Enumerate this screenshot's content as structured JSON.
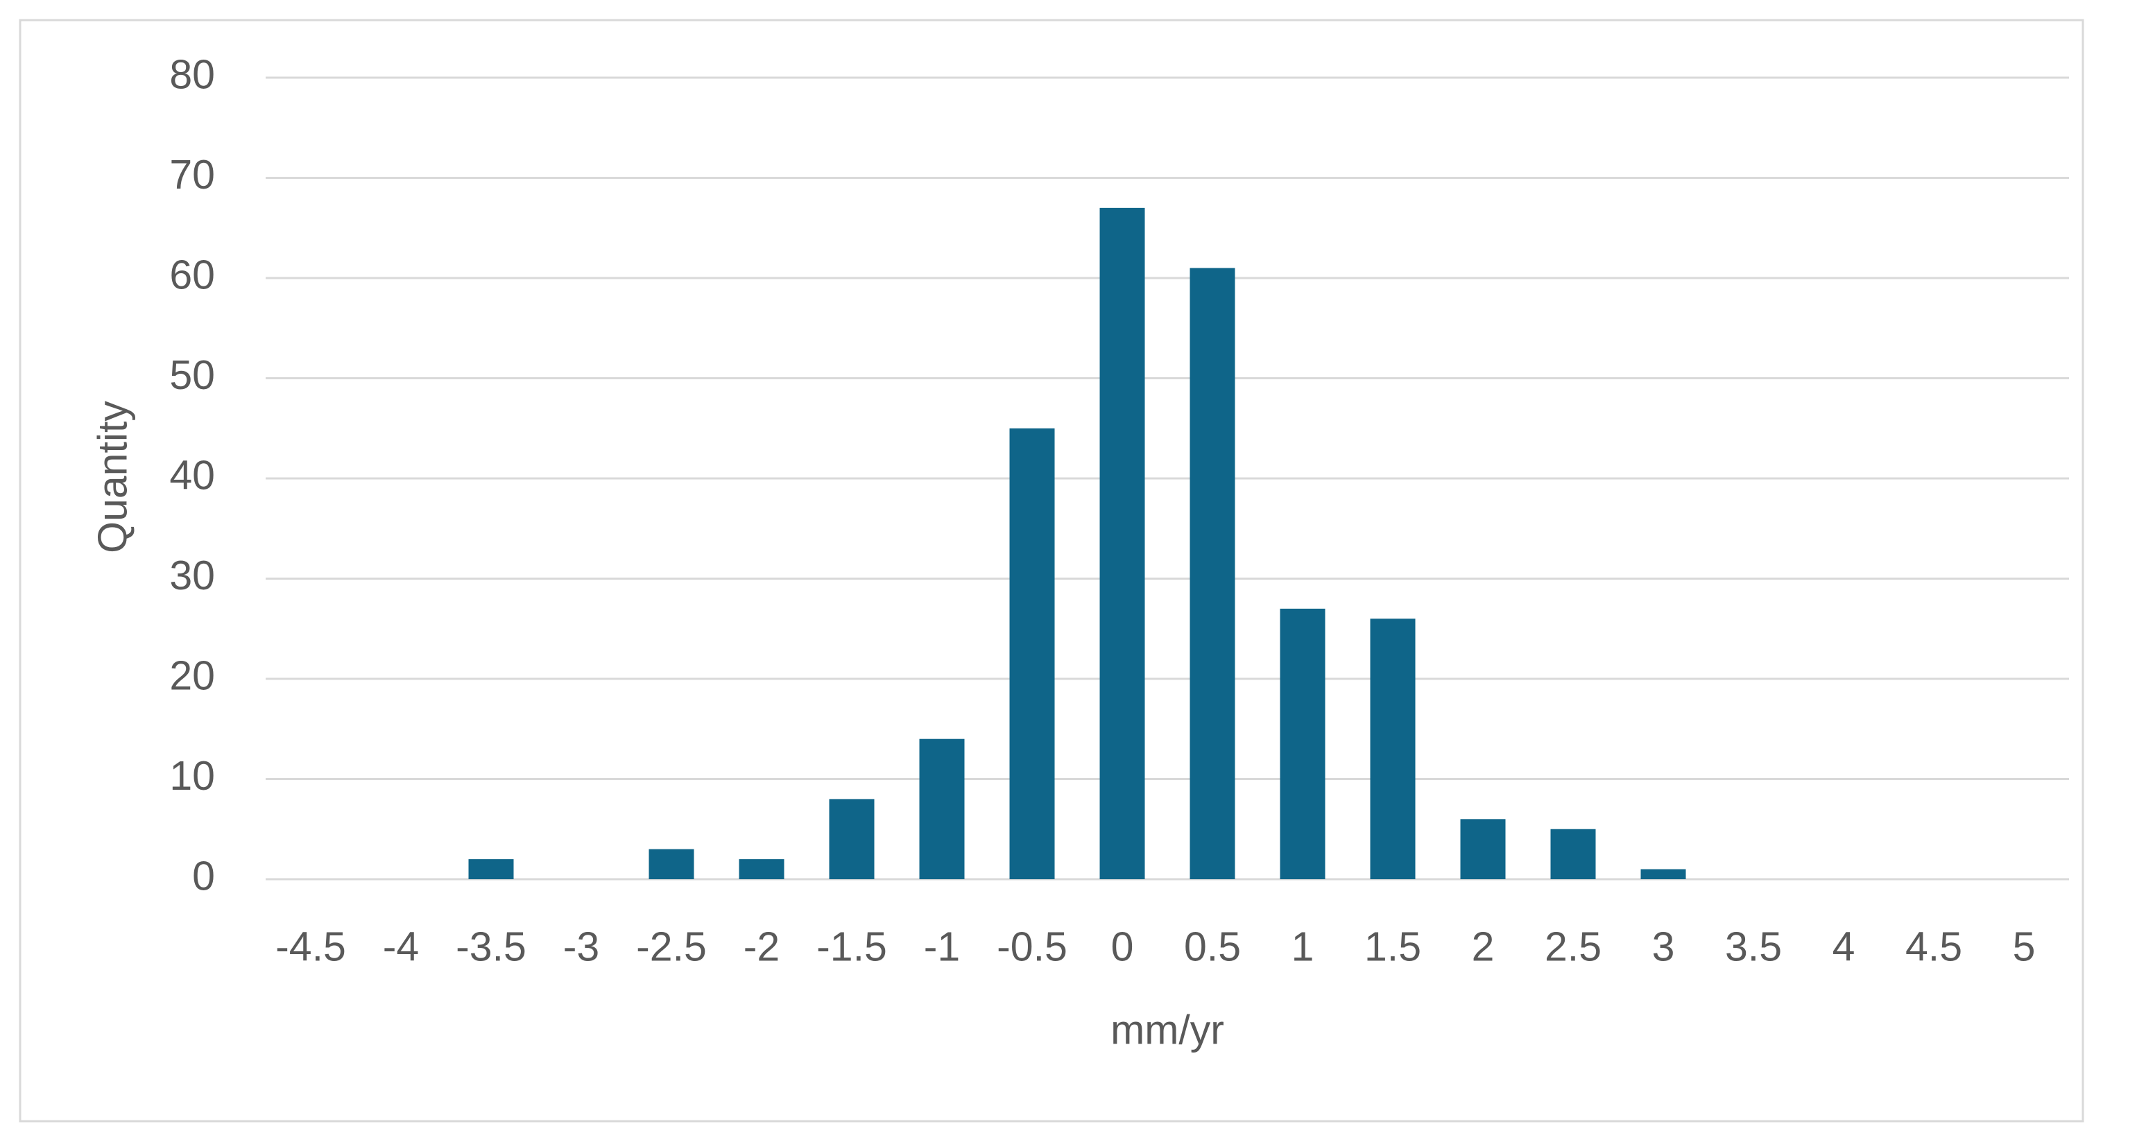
{
  "chart_data": {
    "type": "bar",
    "x_label": "mm/yr",
    "y_label": "Quantity",
    "categories": [
      "-4.5",
      "-4",
      "-3.5",
      "-3",
      "-2.5",
      "-2",
      "-1.5",
      "-1",
      "-0.5",
      "0",
      "0.5",
      "1",
      "1.5",
      "2",
      "2.5",
      "3",
      "3.5",
      "4",
      "4.5",
      "5"
    ],
    "values": [
      0,
      0,
      2,
      0,
      3,
      2,
      8,
      14,
      45,
      67,
      61,
      27,
      26,
      6,
      5,
      1,
      0,
      0,
      0,
      0
    ],
    "color": "#0f6589",
    "ylim": [
      0,
      80
    ],
    "yticks": [
      0,
      10,
      20,
      30,
      40,
      50,
      60,
      70,
      80
    ],
    "grid": true
  }
}
